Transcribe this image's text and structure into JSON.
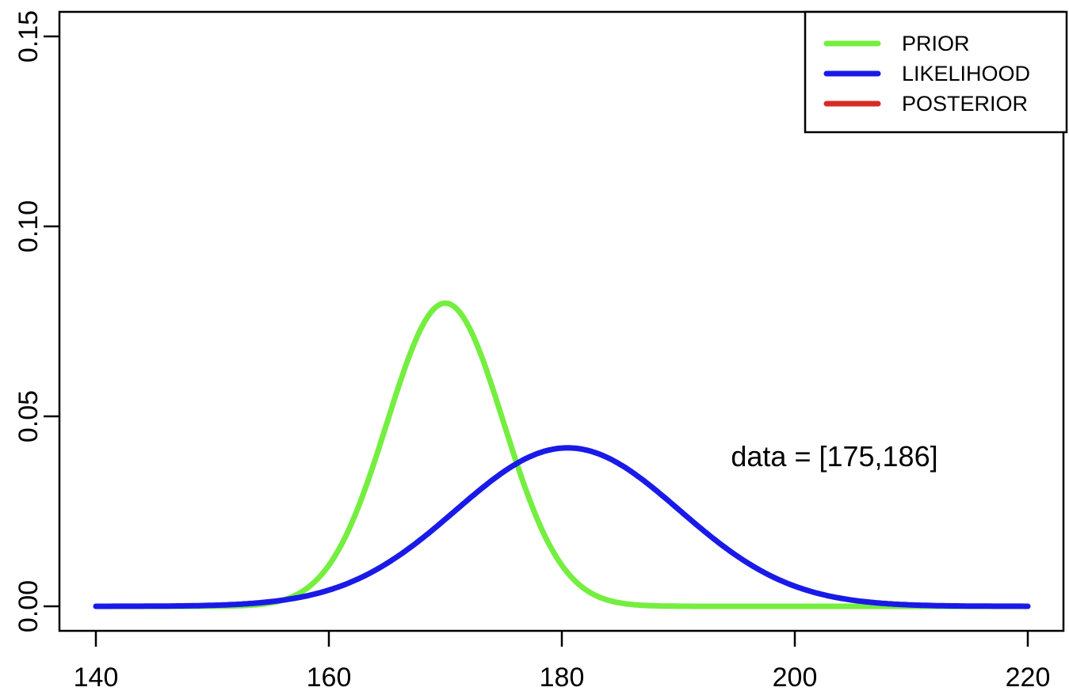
{
  "chart_data": {
    "type": "line",
    "title": "",
    "xlabel": "",
    "ylabel": "",
    "xlim": [
      140,
      220
    ],
    "ylim": [
      0,
      0.15
    ],
    "grid": false,
    "x_ticks": [
      140,
      160,
      180,
      200,
      220
    ],
    "y_ticks": [
      "0.00",
      "0.05",
      "0.10",
      "0.15"
    ],
    "y_tick_values": [
      0,
      0.05,
      0.1,
      0.15
    ],
    "series": [
      {
        "name": "PRIOR",
        "color": "#74EE3F",
        "shape": "gaussian",
        "mean": 170,
        "sd": 5,
        "peak_x": 170,
        "peak_y": 0.0798,
        "x_range": [
          140,
          220
        ],
        "visible": true
      },
      {
        "name": "LIKELIHOOD",
        "color": "#1A1AE8",
        "shape": "gaussian",
        "mean": 180.5,
        "sd": 9.6,
        "peak_x": 180.5,
        "peak_y": 0.0417,
        "x_range": [
          140,
          220
        ],
        "visible": true
      },
      {
        "name": "POSTERIOR",
        "color": "#D92B26",
        "shape": "gaussian",
        "visible": false
      }
    ],
    "legend": {
      "position": "top-right",
      "items": [
        {
          "label": "PRIOR",
          "color": "#74EE3F"
        },
        {
          "label": "LIKELIHOOD",
          "color": "#1A1AE8"
        },
        {
          "label": "POSTERIOR",
          "color": "#D92B26"
        }
      ]
    },
    "annotation": {
      "text": "data = [175,186]",
      "color": "#2929A8",
      "data_values": [
        175,
        186
      ]
    },
    "axis_color": "#000000"
  }
}
